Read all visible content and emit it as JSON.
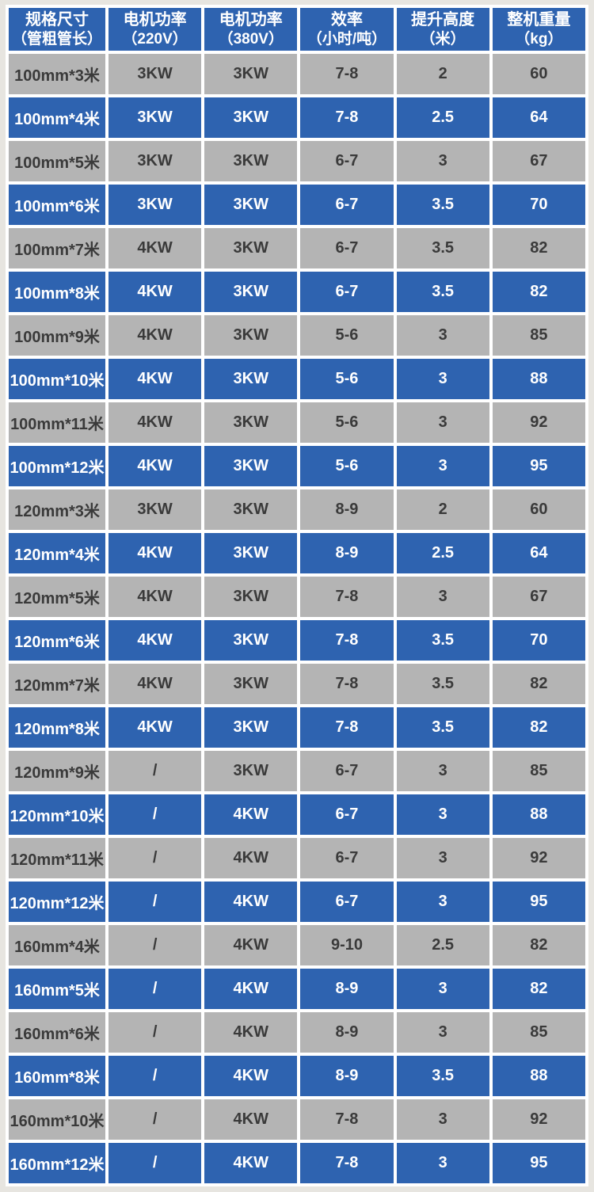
{
  "colors": {
    "header_blue": "#2e63b0",
    "row_blue": "#2e63b0",
    "row_gray": "#b4b4b4",
    "gap_white": "#ffffff",
    "dark_text": "#3a3a3a",
    "page_background": "#e7e5e0",
    "light_text": "#ffffff"
  },
  "chart_data": {
    "type": "table",
    "columns": [
      {
        "label": "规格尺寸（管粗管长）",
        "line1": "规格尺寸",
        "line2": "（管粗管长）"
      },
      {
        "label": "电机功率（220V）",
        "line1": "电机功率",
        "line2": "（220V）"
      },
      {
        "label": "电机功率（380V）",
        "line1": "电机功率",
        "line2": "（380V）"
      },
      {
        "label": "效率（小时/吨）",
        "line1": "效率",
        "line2": "（小时/吨）"
      },
      {
        "label": "提升高度（米）",
        "line1": "提升高度",
        "line2": "（米）"
      },
      {
        "label": "整机重量（kg）",
        "line1": "整机重量",
        "line2": "（kg）"
      }
    ],
    "rows": [
      [
        "100mm*3米",
        "3KW",
        "3KW",
        "7-8",
        "2",
        "60"
      ],
      [
        "100mm*4米",
        "3KW",
        "3KW",
        "7-8",
        "2.5",
        "64"
      ],
      [
        "100mm*5米",
        "3KW",
        "3KW",
        "6-7",
        "3",
        "67"
      ],
      [
        "100mm*6米",
        "3KW",
        "3KW",
        "6-7",
        "3.5",
        "70"
      ],
      [
        "100mm*7米",
        "4KW",
        "3KW",
        "6-7",
        "3.5",
        "82"
      ],
      [
        "100mm*8米",
        "4KW",
        "3KW",
        "6-7",
        "3.5",
        "82"
      ],
      [
        "100mm*9米",
        "4KW",
        "3KW",
        "5-6",
        "3",
        "85"
      ],
      [
        "100mm*10米",
        "4KW",
        "3KW",
        "5-6",
        "3",
        "88"
      ],
      [
        "100mm*11米",
        "4KW",
        "3KW",
        "5-6",
        "3",
        "92"
      ],
      [
        "100mm*12米",
        "4KW",
        "3KW",
        "5-6",
        "3",
        "95"
      ],
      [
        "120mm*3米",
        "3KW",
        "3KW",
        "8-9",
        "2",
        "60"
      ],
      [
        "120mm*4米",
        "4KW",
        "3KW",
        "8-9",
        "2.5",
        "64"
      ],
      [
        "120mm*5米",
        "4KW",
        "3KW",
        "7-8",
        "3",
        "67"
      ],
      [
        "120mm*6米",
        "4KW",
        "3KW",
        "7-8",
        "3.5",
        "70"
      ],
      [
        "120mm*7米",
        "4KW",
        "3KW",
        "7-8",
        "3.5",
        "82"
      ],
      [
        "120mm*8米",
        "4KW",
        "3KW",
        "7-8",
        "3.5",
        "82"
      ],
      [
        "120mm*9米",
        "/",
        "3KW",
        "6-7",
        "3",
        "85"
      ],
      [
        "120mm*10米",
        "/",
        "4KW",
        "6-7",
        "3",
        "88"
      ],
      [
        "120mm*11米",
        "/",
        "4KW",
        "6-7",
        "3",
        "92"
      ],
      [
        "120mm*12米",
        "/",
        "4KW",
        "6-7",
        "3",
        "95"
      ],
      [
        "160mm*4米",
        "/",
        "4KW",
        "9-10",
        "2.5",
        "82"
      ],
      [
        "160mm*5米",
        "/",
        "4KW",
        "8-9",
        "3",
        "82"
      ],
      [
        "160mm*6米",
        "/",
        "4KW",
        "8-9",
        "3",
        "85"
      ],
      [
        "160mm*8米",
        "/",
        "4KW",
        "8-9",
        "3.5",
        "88"
      ],
      [
        "160mm*10米",
        "/",
        "4KW",
        "7-8",
        "3",
        "92"
      ],
      [
        "160mm*12米",
        "/",
        "4KW",
        "7-8",
        "3",
        "95"
      ]
    ],
    "row_style_alternation": [
      "gray",
      "blue"
    ]
  }
}
